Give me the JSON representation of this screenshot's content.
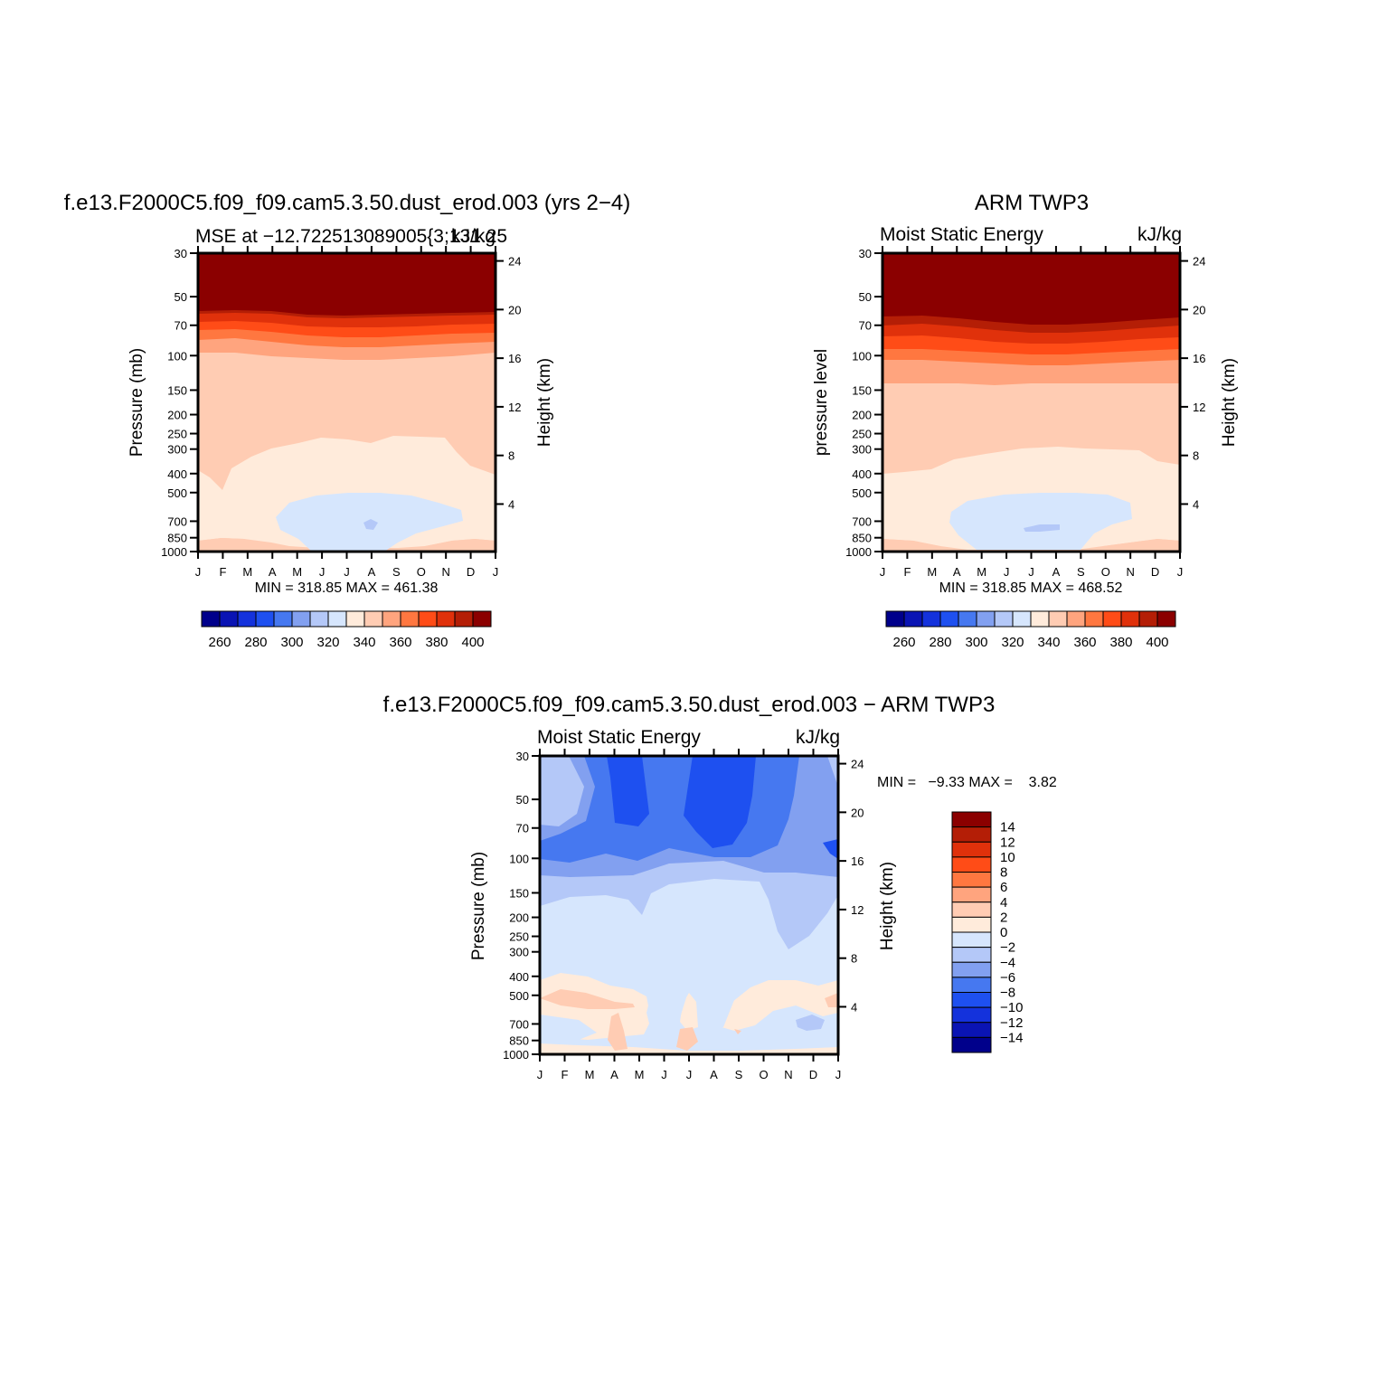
{
  "chart_data": [
    {
      "type": "heatmap",
      "title": "f.e13.F2000C5.f09_f09.cam5.3.50.dust_erod.003 (yrs 2−4)",
      "subtitle_left": "MSE at −12.722513089005{3;131.25",
      "subtitle_right": "kJ/kg",
      "ylabel": "Pressure (mb)",
      "ylabel_right": "Height (km)",
      "x_ticks": [
        "J",
        "F",
        "M",
        "A",
        "M",
        "J",
        "J",
        "A",
        "S",
        "O",
        "N",
        "D",
        "J"
      ],
      "y_ticks": [
        30,
        50,
        70,
        100,
        150,
        200,
        250,
        300,
        400,
        500,
        700,
        850,
        1000
      ],
      "y_right_ticks": [
        4,
        8,
        12,
        16,
        20,
        24
      ],
      "ylim": [
        30,
        1000
      ],
      "minmax_text": "MIN = 318.85  MAX = 461.38",
      "colorbar": {
        "orientation": "horizontal",
        "levels": [
          250,
          260,
          270,
          280,
          290,
          300,
          310,
          320,
          330,
          340,
          350,
          360,
          370,
          380,
          390,
          400
        ],
        "tick_labels": [
          "260",
          "280",
          "300",
          "320",
          "340",
          "360",
          "380",
          "400"
        ]
      },
      "contour_levels_shown": [
        330,
        340,
        350,
        360,
        370,
        380,
        390,
        400,
        410
      ]
    },
    {
      "type": "heatmap",
      "title": "ARM TWP3",
      "subtitle_left": "Moist Static Energy",
      "subtitle_right": "kJ/kg",
      "ylabel": "pressure level",
      "ylabel_right": "Height (km)",
      "x_ticks": [
        "J",
        "F",
        "M",
        "A",
        "M",
        "J",
        "J",
        "A",
        "S",
        "O",
        "N",
        "D",
        "J"
      ],
      "y_ticks": [
        30,
        50,
        70,
        100,
        150,
        200,
        250,
        300,
        400,
        500,
        700,
        850,
        1000
      ],
      "y_right_ticks": [
        4,
        8,
        12,
        16,
        20,
        24
      ],
      "ylim": [
        30,
        1000
      ],
      "minmax_text": "MIN = 318.85  MAX = 468.52",
      "colorbar": {
        "orientation": "horizontal",
        "levels": [
          250,
          260,
          270,
          280,
          290,
          300,
          310,
          320,
          330,
          340,
          350,
          360,
          370,
          380,
          390,
          400
        ],
        "tick_labels": [
          "260",
          "280",
          "300",
          "320",
          "340",
          "360",
          "380",
          "400"
        ]
      }
    },
    {
      "type": "heatmap",
      "title": "f.e13.F2000C5.f09_f09.cam5.3.50.dust_erod.003 − ARM TWP3",
      "subtitle_left": "Moist Static Energy",
      "subtitle_right": "kJ/kg",
      "ylabel": "Pressure (mb)",
      "ylabel_right": "Height (km)",
      "x_ticks": [
        "J",
        "F",
        "M",
        "A",
        "M",
        "J",
        "J",
        "A",
        "S",
        "O",
        "N",
        "D",
        "J"
      ],
      "y_ticks": [
        30,
        50,
        70,
        100,
        150,
        200,
        250,
        300,
        400,
        500,
        700,
        850,
        1000
      ],
      "y_right_ticks": [
        4,
        8,
        12,
        16,
        20,
        24
      ],
      "ylim": [
        30,
        1000
      ],
      "minmax_text": "MIN =   −9.33 MAX =    3.82",
      "colorbar": {
        "orientation": "vertical",
        "levels": [
          -14,
          -12,
          -10,
          -8,
          -6,
          -4,
          -2,
          0,
          2,
          4,
          6,
          8,
          10,
          12,
          14
        ],
        "tick_labels": [
          "14",
          "12",
          "10",
          "8",
          "6",
          "4",
          "2",
          "0",
          "−2",
          "−4",
          "−6",
          "−8",
          "−10",
          "−12",
          "−14"
        ]
      }
    }
  ],
  "palette": {
    "mse": [
      "#00008b",
      "#0a14b4",
      "#1432dc",
      "#1e50f0",
      "#4678f0",
      "#82a0f0",
      "#b4c8f8",
      "#d6e6fd",
      "#ffebdb",
      "#ffccb3",
      "#ffa47e",
      "#ff7740",
      "#ff4c17",
      "#e0310b",
      "#b41e06",
      "#8b0000"
    ],
    "diff": [
      "#00008b",
      "#0a14b4",
      "#1432dc",
      "#1e50f0",
      "#4678f0",
      "#82a0f0",
      "#b4c8f8",
      "#d6e6fd",
      "#ffebdb",
      "#ffccb3",
      "#ffa47e",
      "#ff7740",
      "#ff4c17",
      "#e0310b",
      "#b41e06",
      "#8b0000"
    ]
  }
}
